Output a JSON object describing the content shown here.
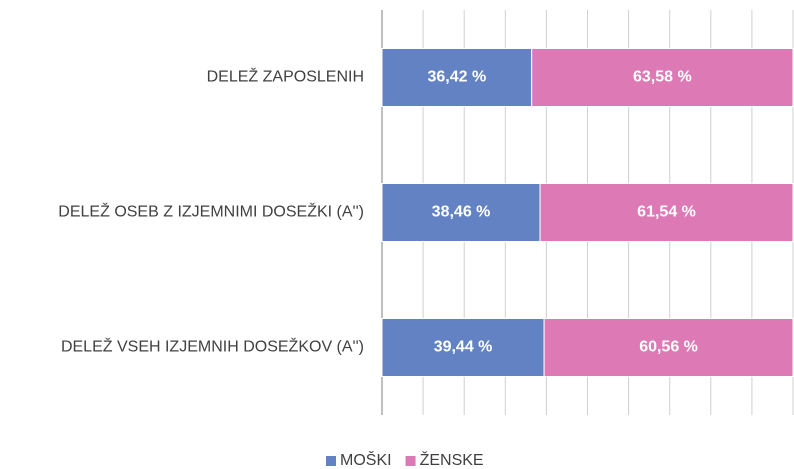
{
  "chart_data": {
    "type": "stacked_barh",
    "categories": [
      "DELEŽ ZAPOSLENIH",
      "DELEŽ OSEB Z IZJEMNIMI DOSEŽKI (A'')",
      "DELEŽ VSEH IZJEMNIH DOSEŽKOV (A'')"
    ],
    "series": [
      {
        "name": "MOŠKI",
        "color": "#6382c4",
        "values": [
          36.42,
          38.46,
          39.44
        ],
        "value_labels": [
          "36,42 %",
          "38,46 %",
          "39,44 %"
        ]
      },
      {
        "name": "ŽENSKE",
        "color": "#dd79b4",
        "values": [
          63.58,
          61.54,
          60.56
        ],
        "value_labels": [
          "63,58 %",
          "61,54 %",
          "60,56 %"
        ]
      }
    ],
    "xlim": [
      0,
      100
    ],
    "xticks": [
      0,
      10,
      20,
      30,
      40,
      50,
      60,
      70,
      80,
      90,
      100
    ],
    "grid": true,
    "legend": "bottom"
  }
}
